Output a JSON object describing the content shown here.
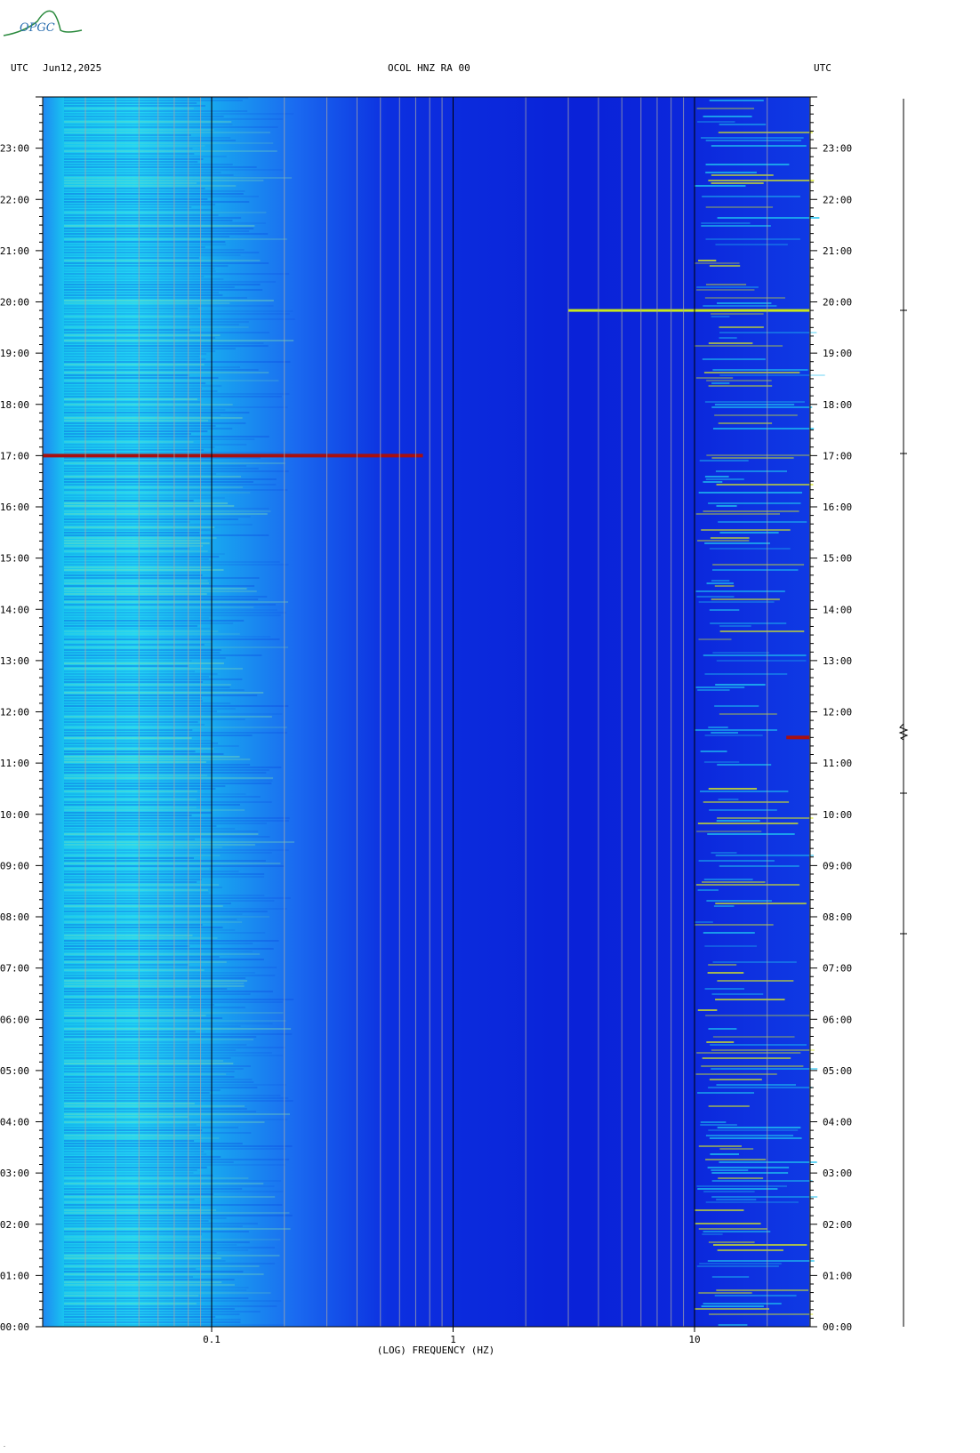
{
  "header": {
    "left_tz": "UTC",
    "date": "Jun12,2025",
    "station": "OCOL HNZ RA 00",
    "right_tz": "UTC"
  },
  "logo": {
    "text": "OPGC"
  },
  "chart_data": {
    "type": "heatmap",
    "title": "OCOL HNZ RA 00",
    "xlabel": "(LOG) FREQUENCY (HZ)",
    "ylabel": "UTC",
    "x_scale": "log",
    "xlim": [
      0.0167,
      31.5
    ],
    "ylim": [
      "00:00",
      "24:00"
    ],
    "x_tick_labels": [
      {
        "value": 0.1,
        "label": "0.1"
      },
      {
        "value": 1,
        "label": "1"
      },
      {
        "value": 10,
        "label": "10"
      }
    ],
    "y_tick_labels": [
      "00:00",
      "01:00",
      "02:00",
      "03:00",
      "04:00",
      "05:00",
      "06:00",
      "07:00",
      "08:00",
      "09:00",
      "10:00",
      "11:00",
      "12:00",
      "13:00",
      "14:00",
      "15:00",
      "16:00",
      "17:00",
      "18:00",
      "19:00",
      "20:00",
      "21:00",
      "22:00",
      "23:00"
    ],
    "events": [
      {
        "time": "17:00",
        "freq_range_hz": [
          0.0167,
          0.75
        ],
        "intensity": "very high"
      },
      {
        "time": "11:30",
        "freq_range_hz": [
          24,
          31.5
        ],
        "intensity": "very high"
      },
      {
        "time": "19:50",
        "freq_range_hz": [
          3,
          31.5
        ],
        "intensity": "medium"
      }
    ],
    "colors": {
      "background": "#0a1fd8",
      "low_freq_band": "#18c8f0",
      "mid_band": "#1a78f0",
      "high": "#c8e81c",
      "peak": "#a81010"
    }
  }
}
